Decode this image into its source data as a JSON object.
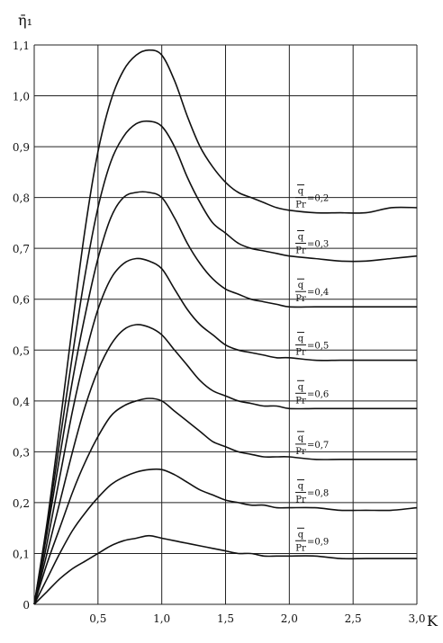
{
  "chart_data": {
    "type": "line",
    "ylabel": "η̄₁",
    "xlabel": "K",
    "xlim": [
      0,
      3.0
    ],
    "ylim": [
      0,
      1.1
    ],
    "x_ticks": [
      "0,5",
      "1,0",
      "1,5",
      "2,0",
      "2,5",
      "3,0"
    ],
    "y_ticks": [
      "0",
      "0,1",
      "0,2",
      "0,3",
      "0,4",
      "0,5",
      "0,6",
      "0,7",
      "0,8",
      "0,9",
      "1,0",
      "1,1"
    ],
    "grid": true,
    "series": [
      {
        "name": "q/Pr=0,2",
        "label_num": "q",
        "label_den": "Pr",
        "label_val": "=0,2",
        "x": [
          0,
          0.1,
          0.2,
          0.3,
          0.4,
          0.5,
          0.6,
          0.7,
          0.8,
          0.9,
          1.0,
          1.1,
          1.2,
          1.3,
          1.4,
          1.5,
          1.6,
          1.7,
          1.8,
          1.9,
          2.0,
          2.2,
          2.4,
          2.6,
          2.8,
          3.0
        ],
        "y": [
          0,
          0.16,
          0.35,
          0.55,
          0.74,
          0.89,
          0.99,
          1.05,
          1.08,
          1.09,
          1.08,
          1.03,
          0.96,
          0.9,
          0.86,
          0.83,
          0.81,
          0.8,
          0.79,
          0.78,
          0.775,
          0.77,
          0.77,
          0.77,
          0.78,
          0.78
        ]
      },
      {
        "name": "q/Pr=0,3",
        "label_num": "q",
        "label_den": "Pr",
        "label_val": "=0,3",
        "x": [
          0,
          0.1,
          0.2,
          0.3,
          0.4,
          0.5,
          0.6,
          0.7,
          0.8,
          0.9,
          1.0,
          1.1,
          1.2,
          1.3,
          1.4,
          1.5,
          1.6,
          1.7,
          1.8,
          1.9,
          2.0,
          2.2,
          2.4,
          2.6,
          2.8,
          3.0
        ],
        "y": [
          0,
          0.15,
          0.32,
          0.49,
          0.65,
          0.78,
          0.87,
          0.92,
          0.945,
          0.95,
          0.94,
          0.9,
          0.84,
          0.79,
          0.75,
          0.73,
          0.71,
          0.7,
          0.695,
          0.69,
          0.685,
          0.68,
          0.675,
          0.675,
          0.68,
          0.685
        ]
      },
      {
        "name": "q/Pr=0,4",
        "label_num": "q",
        "label_den": "Pr",
        "label_val": "=0,4",
        "x": [
          0,
          0.1,
          0.2,
          0.3,
          0.4,
          0.5,
          0.6,
          0.7,
          0.8,
          0.9,
          1.0,
          1.1,
          1.2,
          1.3,
          1.4,
          1.5,
          1.6,
          1.7,
          1.8,
          1.9,
          2.0,
          2.2,
          2.4,
          2.6,
          2.8,
          3.0
        ],
        "y": [
          0,
          0.14,
          0.29,
          0.44,
          0.57,
          0.68,
          0.76,
          0.8,
          0.81,
          0.81,
          0.8,
          0.76,
          0.71,
          0.67,
          0.64,
          0.62,
          0.61,
          0.6,
          0.595,
          0.59,
          0.585,
          0.585,
          0.585,
          0.585,
          0.585,
          0.585
        ]
      },
      {
        "name": "q/Pr=0,5",
        "label_num": "q",
        "label_den": "Pr",
        "label_val": "=0,5",
        "x": [
          0,
          0.1,
          0.2,
          0.3,
          0.4,
          0.5,
          0.6,
          0.7,
          0.8,
          0.9,
          1.0,
          1.1,
          1.2,
          1.3,
          1.4,
          1.5,
          1.6,
          1.7,
          1.8,
          1.9,
          2.0,
          2.2,
          2.4,
          2.6,
          2.8,
          3.0
        ],
        "y": [
          0,
          0.12,
          0.25,
          0.38,
          0.49,
          0.58,
          0.64,
          0.67,
          0.68,
          0.675,
          0.66,
          0.62,
          0.58,
          0.55,
          0.53,
          0.51,
          0.5,
          0.495,
          0.49,
          0.485,
          0.485,
          0.48,
          0.48,
          0.48,
          0.48,
          0.48
        ]
      },
      {
        "name": "q/Pr=0,6",
        "label_num": "q",
        "label_den": "Pr",
        "label_val": "=0,6",
        "x": [
          0,
          0.1,
          0.2,
          0.3,
          0.4,
          0.5,
          0.6,
          0.7,
          0.8,
          0.9,
          1.0,
          1.1,
          1.2,
          1.3,
          1.4,
          1.5,
          1.6,
          1.7,
          1.8,
          1.9,
          2.0,
          2.2,
          2.4,
          2.6,
          2.8,
          3.0
        ],
        "y": [
          0,
          0.1,
          0.2,
          0.3,
          0.39,
          0.46,
          0.51,
          0.54,
          0.55,
          0.545,
          0.53,
          0.5,
          0.47,
          0.44,
          0.42,
          0.41,
          0.4,
          0.395,
          0.39,
          0.39,
          0.385,
          0.385,
          0.385,
          0.385,
          0.385,
          0.385
        ]
      },
      {
        "name": "q/Pr=0,7",
        "label_num": "q",
        "label_den": "Pr",
        "label_val": "=0,7",
        "x": [
          0,
          0.1,
          0.2,
          0.3,
          0.4,
          0.5,
          0.6,
          0.7,
          0.8,
          0.9,
          1.0,
          1.1,
          1.2,
          1.3,
          1.4,
          1.5,
          1.6,
          1.7,
          1.8,
          1.9,
          2.0,
          2.2,
          2.4,
          2.6,
          2.8,
          3.0
        ],
        "y": [
          0,
          0.08,
          0.15,
          0.22,
          0.28,
          0.33,
          0.37,
          0.39,
          0.4,
          0.405,
          0.4,
          0.38,
          0.36,
          0.34,
          0.32,
          0.31,
          0.3,
          0.295,
          0.29,
          0.29,
          0.29,
          0.285,
          0.285,
          0.285,
          0.285,
          0.285
        ]
      },
      {
        "name": "q/Pr=0,8",
        "label_num": "q",
        "label_den": "Pr",
        "label_val": "=0,8",
        "x": [
          0,
          0.1,
          0.2,
          0.3,
          0.4,
          0.5,
          0.6,
          0.7,
          0.8,
          0.9,
          1.0,
          1.1,
          1.2,
          1.3,
          1.4,
          1.5,
          1.6,
          1.7,
          1.8,
          1.9,
          2.0,
          2.2,
          2.4,
          2.6,
          2.8,
          3.0
        ],
        "y": [
          0,
          0.05,
          0.1,
          0.145,
          0.18,
          0.21,
          0.235,
          0.25,
          0.26,
          0.265,
          0.265,
          0.255,
          0.24,
          0.225,
          0.215,
          0.205,
          0.2,
          0.195,
          0.195,
          0.19,
          0.19,
          0.19,
          0.185,
          0.185,
          0.185,
          0.19
        ]
      },
      {
        "name": "q/Pr=0,9",
        "label_num": "q",
        "label_den": "Pr",
        "label_val": "=0,9",
        "x": [
          0,
          0.1,
          0.2,
          0.3,
          0.4,
          0.5,
          0.6,
          0.7,
          0.8,
          0.9,
          1.0,
          1.1,
          1.2,
          1.3,
          1.4,
          1.5,
          1.6,
          1.7,
          1.8,
          1.9,
          2.0,
          2.2,
          2.4,
          2.6,
          2.8,
          3.0
        ],
        "y": [
          0,
          0.025,
          0.05,
          0.07,
          0.085,
          0.1,
          0.115,
          0.125,
          0.13,
          0.135,
          0.13,
          0.125,
          0.12,
          0.115,
          0.11,
          0.105,
          0.1,
          0.1,
          0.095,
          0.095,
          0.095,
          0.095,
          0.09,
          0.09,
          0.09,
          0.09
        ]
      }
    ]
  }
}
